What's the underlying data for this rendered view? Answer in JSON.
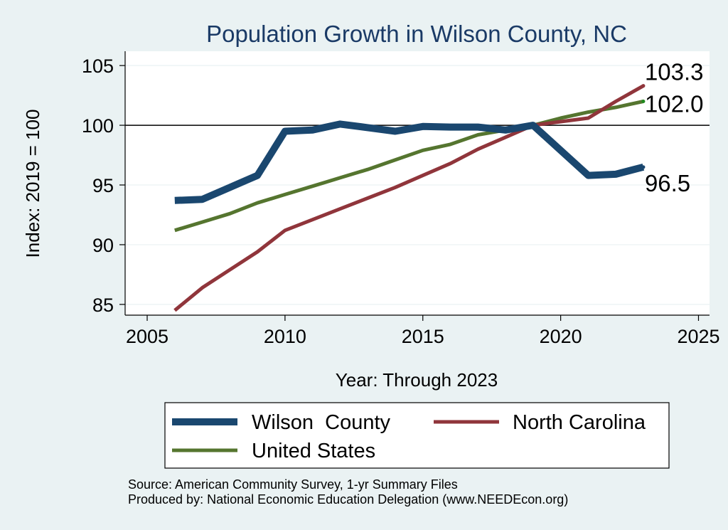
{
  "chart_data": {
    "type": "line",
    "title": "Population Growth in Wilson County, NC",
    "xlabel": "Year: Through 2023",
    "ylabel": "Index: 2019 = 100",
    "xlim": [
      2004.2,
      2025.4
    ],
    "ylim": [
      84.1,
      106.2
    ],
    "x_ticks": [
      2005,
      2010,
      2015,
      2020,
      2025
    ],
    "y_ticks": [
      85,
      90,
      95,
      100,
      105
    ],
    "reference_line": 100,
    "grid": true,
    "legend_position": "bottom",
    "series": [
      {
        "name": "Wilson  County",
        "color": "#1a476f",
        "x": [
          2006,
          2007,
          2008,
          2009,
          2010,
          2011,
          2012,
          2013,
          2014,
          2015,
          2016,
          2017,
          2018,
          2019,
          2020,
          2021,
          2022,
          2023
        ],
        "values": [
          93.7,
          93.8,
          94.8,
          95.8,
          99.5,
          99.6,
          100.1,
          99.8,
          99.5,
          99.9,
          99.85,
          99.85,
          99.6,
          100.0,
          97.9,
          95.8,
          95.9,
          96.5
        ],
        "end_label": "96.5"
      },
      {
        "name": "North Carolina",
        "color": "#90353b",
        "x": [
          2006,
          2007,
          2008,
          2009,
          2010,
          2011,
          2012,
          2013,
          2014,
          2015,
          2016,
          2017,
          2018,
          2019,
          2020,
          2021,
          2022,
          2023
        ],
        "values": [
          84.5,
          86.4,
          87.9,
          89.4,
          91.2,
          92.1,
          93.0,
          93.9,
          94.8,
          95.8,
          96.8,
          98.0,
          99.0,
          100.0,
          100.3,
          100.6,
          102.0,
          103.3
        ],
        "end_label": "103.3"
      },
      {
        "name": "United States",
        "color": "#55752f",
        "x": [
          2006,
          2007,
          2008,
          2009,
          2010,
          2011,
          2012,
          2013,
          2014,
          2015,
          2016,
          2017,
          2018,
          2019,
          2020,
          2021,
          2022,
          2023
        ],
        "values": [
          91.2,
          91.9,
          92.6,
          93.5,
          94.2,
          94.9,
          95.6,
          96.3,
          97.1,
          97.9,
          98.4,
          99.2,
          99.6,
          100.0,
          100.6,
          101.1,
          101.5,
          102.0
        ],
        "end_label": "102.0"
      }
    ]
  },
  "footer": {
    "source": "Source: American Community Survey, 1-yr Summary Files",
    "produced_by": "Produced by: National Economic Education Delegation (www.NEEDEcon.org)"
  },
  "colors": {
    "background": "#eaf2f3",
    "plot_background": "#ffffff",
    "title": "#1a3a66",
    "grid": "#eaf2f3"
  }
}
